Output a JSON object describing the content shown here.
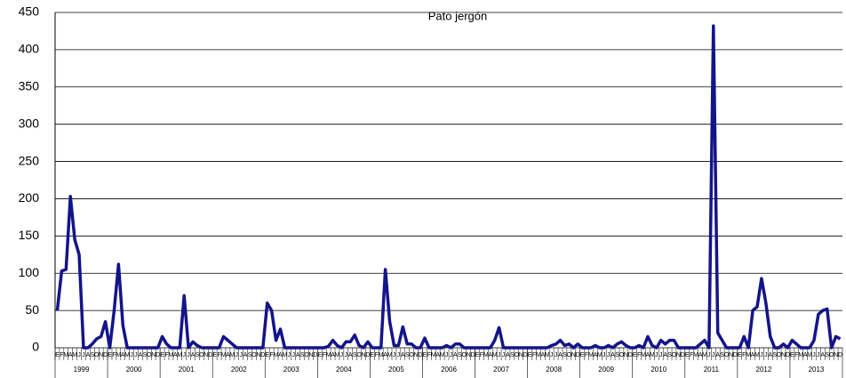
{
  "chart_data": {
    "type": "line",
    "title": "Pato jergón",
    "categories": [
      "E",
      "F",
      "M",
      "A",
      "M",
      "J",
      "J",
      "A",
      "S",
      "O",
      "N",
      "D",
      "E",
      "F",
      "M",
      "A",
      "M",
      "J",
      "J",
      "A",
      "S",
      "O",
      "N",
      "D",
      "E",
      "F",
      "M",
      "A",
      "M",
      "J",
      "J",
      "A",
      "S",
      "O",
      "N",
      "D",
      "E",
      "F",
      "M",
      "A",
      "M",
      "J",
      "J",
      "A",
      "S",
      "O",
      "N",
      "D",
      "E",
      "F",
      "M",
      "A",
      "M",
      "J",
      "J",
      "A",
      "S",
      "O",
      "N",
      "D",
      "E",
      "F",
      "M",
      "A",
      "M",
      "J",
      "J",
      "A",
      "S",
      "O",
      "N",
      "D",
      "E",
      "F",
      "M",
      "A",
      "M",
      "J",
      "J",
      "A",
      "S",
      "O",
      "N",
      "D",
      "E",
      "F",
      "M",
      "A",
      "M",
      "J",
      "J",
      "A",
      "S",
      "O",
      "N",
      "D",
      "E",
      "F",
      "M",
      "A",
      "M",
      "J",
      "J",
      "A",
      "S",
      "O",
      "N",
      "D",
      "E",
      "F",
      "M",
      "A",
      "M",
      "J",
      "J",
      "A",
      "S",
      "O",
      "N",
      "D",
      "E",
      "F",
      "M",
      "A",
      "M",
      "J",
      "J",
      "A",
      "S",
      "O",
      "N",
      "D",
      "E",
      "F",
      "M",
      "A",
      "M",
      "J",
      "J",
      "A",
      "S",
      "O",
      "N",
      "D",
      "E",
      "F",
      "M",
      "A",
      "M",
      "J",
      "J",
      "A",
      "S",
      "O",
      "N",
      "D",
      "E",
      "F",
      "M",
      "A",
      "M",
      "J",
      "J",
      "A",
      "S",
      "O",
      "N",
      "D",
      "E",
      "F",
      "M",
      "A",
      "M",
      "J",
      "J",
      "A",
      "S",
      "O",
      "N",
      "D"
    ],
    "years": [
      "1999",
      "2000",
      "2001",
      "2002",
      "2003",
      "2004",
      "2005",
      "2006",
      "2007",
      "2008",
      "2009",
      "2010",
      "2011",
      "2012",
      "2013"
    ],
    "series": [
      {
        "color": "#14148a",
        "values": [
          50,
          103,
          105,
          203,
          145,
          125,
          0,
          0,
          5,
          12,
          15,
          35,
          0,
          50,
          112,
          30,
          0,
          0,
          0,
          0,
          0,
          0,
          0,
          0,
          15,
          5,
          0,
          0,
          0,
          70,
          0,
          8,
          3,
          0,
          0,
          0,
          0,
          0,
          15,
          10,
          5,
          0,
          0,
          0,
          0,
          0,
          0,
          0,
          60,
          50,
          10,
          25,
          0,
          0,
          0,
          0,
          0,
          0,
          0,
          0,
          0,
          0,
          2,
          10,
          3,
          0,
          8,
          8,
          17,
          3,
          0,
          8,
          0,
          0,
          0,
          105,
          35,
          3,
          3,
          28,
          5,
          5,
          0,
          0,
          13,
          0,
          0,
          0,
          0,
          3,
          0,
          5,
          5,
          0,
          0,
          0,
          0,
          0,
          0,
          0,
          10,
          27,
          0,
          0,
          0,
          0,
          0,
          0,
          0,
          0,
          0,
          0,
          0,
          3,
          5,
          10,
          3,
          5,
          0,
          5,
          0,
          0,
          0,
          3,
          0,
          0,
          3,
          0,
          5,
          8,
          3,
          0,
          0,
          3,
          0,
          15,
          3,
          0,
          10,
          5,
          10,
          10,
          0,
          0,
          0,
          0,
          0,
          5,
          10,
          0,
          432,
          20,
          10,
          0,
          0,
          0,
          0,
          15,
          0,
          50,
          55,
          93,
          60,
          15,
          0,
          0,
          5,
          0,
          10,
          5,
          0,
          0,
          0,
          10,
          45,
          50,
          52,
          0,
          15,
          12
        ]
      }
    ],
    "ylim": [
      0,
      450
    ],
    "yticks": [
      0,
      50,
      100,
      150,
      200,
      250,
      300,
      350,
      400,
      450
    ],
    "grid": true
  }
}
